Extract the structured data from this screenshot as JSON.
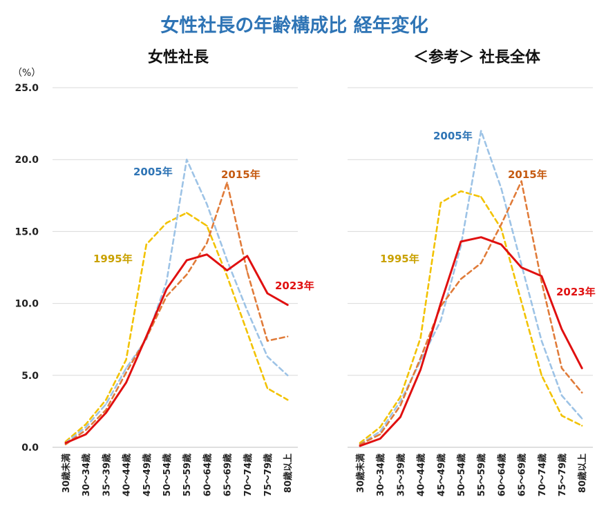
{
  "title": "女性社長の年齢構成比 経年変化",
  "chart_data": [
    {
      "type": "line",
      "title": "女性社長",
      "ylabel": "（%）",
      "ylim": [
        0,
        25
      ],
      "yticks": [
        "0.0",
        "5.0",
        "10.0",
        "15.0",
        "20.0",
        "25.0"
      ],
      "categories": [
        "30歳未満",
        "30～34歳",
        "35～39歳",
        "40～44歳",
        "45～49歳",
        "50～54歳",
        "55～59歳",
        "60～64歳",
        "65～69歳",
        "70～74歳",
        "75～79歳",
        "80歳以上"
      ],
      "series": [
        {
          "name": "1995年",
          "color": "#F2C200",
          "dash": true,
          "values": [
            0.4,
            1.6,
            3.3,
            6.1,
            14.1,
            15.6,
            16.3,
            15.4,
            11.9,
            8.0,
            4.1,
            3.3
          ]
        },
        {
          "name": "2005年",
          "color": "#9DC3E6",
          "dash": true,
          "values": [
            0.3,
            1.4,
            3.0,
            5.5,
            7.5,
            11.5,
            20.0,
            16.9,
            13.0,
            9.5,
            6.3,
            5.0
          ]
        },
        {
          "name": "2015年",
          "color": "#E07B39",
          "dash": true,
          "values": [
            0.2,
            1.2,
            2.6,
            5.2,
            7.6,
            10.5,
            12.0,
            14.2,
            18.4,
            12.2,
            7.4,
            7.7
          ]
        },
        {
          "name": "2023年",
          "color": "#E01010",
          "dash": false,
          "values": [
            0.3,
            0.9,
            2.4,
            4.5,
            7.7,
            11.0,
            13.0,
            13.4,
            12.3,
            13.3,
            10.7,
            9.9
          ]
        }
      ]
    },
    {
      "type": "line",
      "title": "＜参考＞ 社長全体",
      "ylim": [
        0,
        25
      ],
      "categories": [
        "30歳未満",
        "30～34歳",
        "35～39歳",
        "40～44歳",
        "45～49歳",
        "50～54歳",
        "55～59歳",
        "60～64歳",
        "65～69歳",
        "70～74歳",
        "75～79歳",
        "80歳以上"
      ],
      "series": [
        {
          "name": "1995年",
          "color": "#F2C200",
          "dash": true,
          "values": [
            0.3,
            1.4,
            3.5,
            7.6,
            17.0,
            17.8,
            17.4,
            15.2,
            10.1,
            5.0,
            2.2,
            1.5
          ]
        },
        {
          "name": "2005年",
          "color": "#9DC3E6",
          "dash": true,
          "values": [
            0.2,
            1.1,
            3.2,
            6.0,
            8.8,
            14.0,
            22.0,
            18.0,
            12.7,
            7.4,
            3.6,
            2.0
          ]
        },
        {
          "name": "2015年",
          "color": "#E07B39",
          "dash": true,
          "values": [
            0.2,
            0.9,
            2.9,
            6.2,
            9.8,
            11.7,
            12.8,
            15.5,
            18.5,
            11.5,
            5.5,
            3.8
          ]
        },
        {
          "name": "2023年",
          "color": "#E01010",
          "dash": false,
          "values": [
            0.1,
            0.6,
            2.1,
            5.4,
            10.0,
            14.3,
            14.6,
            14.1,
            12.5,
            11.9,
            8.2,
            5.5
          ]
        }
      ]
    }
  ]
}
